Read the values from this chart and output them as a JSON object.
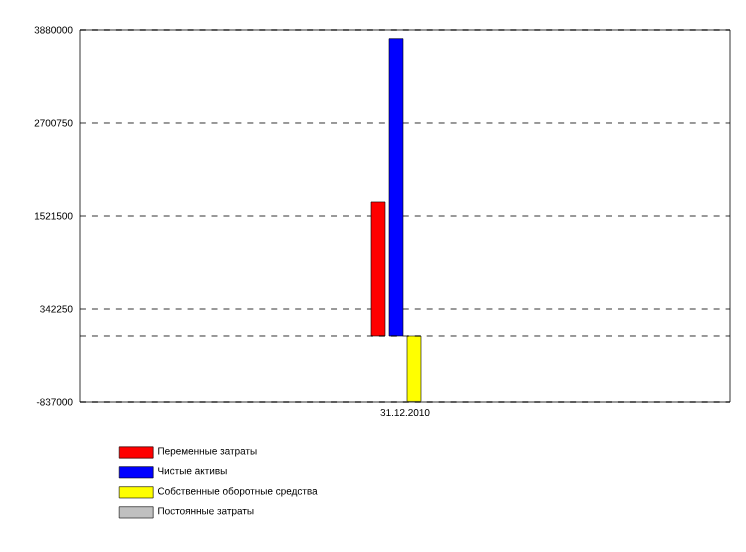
{
  "chart_data": {
    "type": "bar",
    "categories": [
      "31.12.2010"
    ],
    "series": [
      {
        "name": "Переменные затраты",
        "color": "#ff0000",
        "values": [
          1700000
        ]
      },
      {
        "name": "Чистые активы",
        "color": "#0000ff",
        "values": [
          3770000
        ]
      },
      {
        "name": "Собственные оборотные средства",
        "color": "#ffff00",
        "values": [
          -830000
        ]
      },
      {
        "name": "Постоянные затраты",
        "color": "#c0c0c0",
        "values": [
          null
        ]
      }
    ],
    "ylim": [
      -837000,
      3880000
    ],
    "yticks": [
      -837000,
      342250,
      1521500,
      2700750,
      3880000
    ],
    "grid": "y",
    "legend": "bottom"
  }
}
